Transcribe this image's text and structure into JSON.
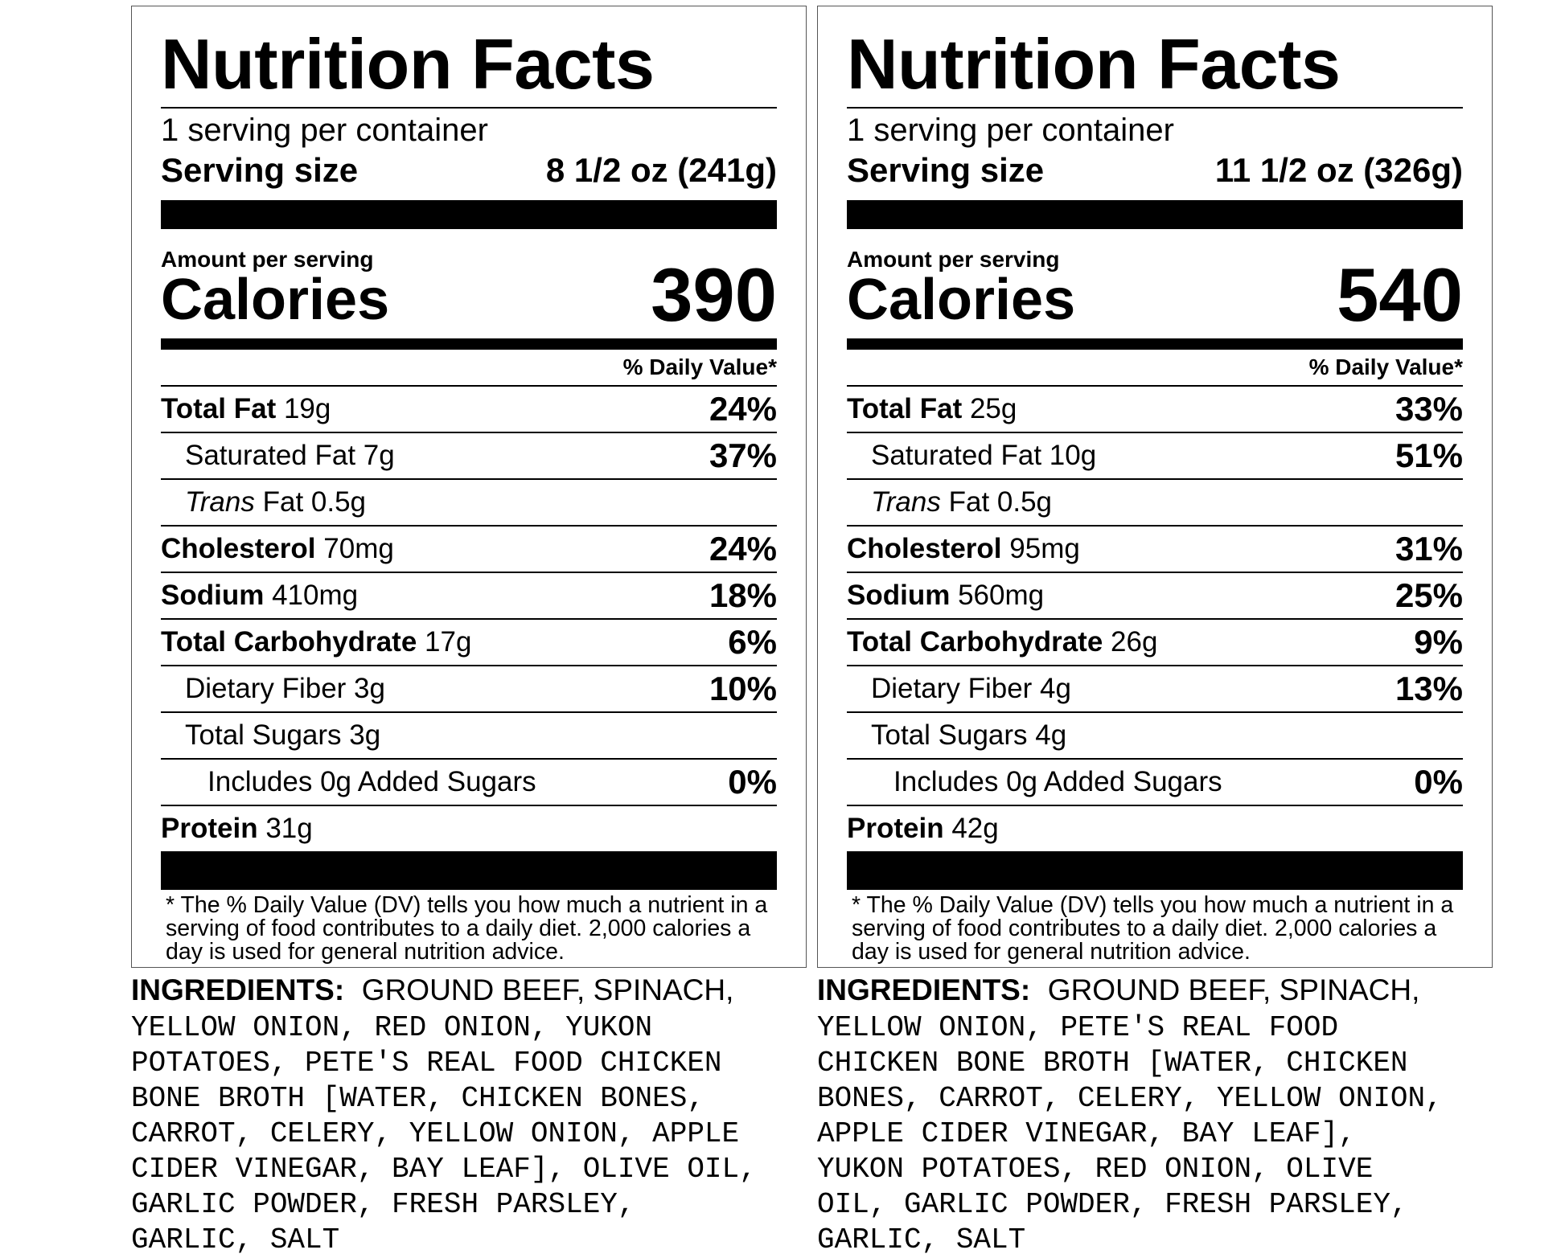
{
  "labels": [
    {
      "title": "Nutrition Facts",
      "servings_per_container": "1 serving per container",
      "serving_size_label": "Serving size",
      "serving_size_value": "8 1/2 oz (241g)",
      "amount_per_serving": "Amount per serving",
      "calories_label": "Calories",
      "calories_value": "390",
      "dv_header": "% Daily Value*",
      "nutrients": {
        "total_fat": {
          "label": "Total Fat",
          "amount": "19g",
          "dv": "24%"
        },
        "saturated_fat": {
          "label": "Saturated Fat 7g",
          "dv": "37%"
        },
        "trans_fat": {
          "label_italic": "Trans",
          "label_rest": "Fat 0.5g"
        },
        "cholesterol": {
          "label": "Cholesterol",
          "amount": "70mg",
          "dv": "24%"
        },
        "sodium": {
          "label": "Sodium",
          "amount": "410mg",
          "dv": "18%"
        },
        "total_carbohydrate": {
          "label": "Total Carbohydrate",
          "amount": "17g",
          "dv": "6%"
        },
        "dietary_fiber": {
          "label": "Dietary Fiber 3g",
          "dv": "10%"
        },
        "total_sugars": {
          "label": "Total Sugars 3g"
        },
        "added_sugars": {
          "label": "Includes 0g Added Sugars",
          "dv": "0%"
        },
        "protein": {
          "label": "Protein",
          "amount": "31g"
        }
      },
      "footnote": "* The % Daily Value (DV) tells you how much a nutrient in a serving of food contributes to a daily diet. 2,000 calories a day is used for general nutrition advice.",
      "ingredients_label": "INGREDIENTS:",
      "ingredients_first": "GROUND BEEF, SPINACH,",
      "ingredients_rest": "YELLOW ONION, RED ONION, YUKON\nPOTATOES, PETE'S REAL FOOD CHICKEN\nBONE BROTH [WATER, CHICKEN BONES,\nCARROT, CELERY, YELLOW ONION, APPLE\nCIDER VINEGAR, BAY LEAF], OLIVE OIL,\nGARLIC POWDER, FRESH PARSLEY,\nGARLIC, SALT"
    },
    {
      "title": "Nutrition Facts",
      "servings_per_container": "1 serving per container",
      "serving_size_label": "Serving size",
      "serving_size_value": "11 1/2 oz (326g)",
      "amount_per_serving": "Amount per serving",
      "calories_label": "Calories",
      "calories_value": "540",
      "dv_header": "% Daily Value*",
      "nutrients": {
        "total_fat": {
          "label": "Total Fat",
          "amount": "25g",
          "dv": "33%"
        },
        "saturated_fat": {
          "label": "Saturated Fat 10g",
          "dv": "51%"
        },
        "trans_fat": {
          "label_italic": "Trans",
          "label_rest": "Fat 0.5g"
        },
        "cholesterol": {
          "label": "Cholesterol",
          "amount": "95mg",
          "dv": "31%"
        },
        "sodium": {
          "label": "Sodium",
          "amount": "560mg",
          "dv": "25%"
        },
        "total_carbohydrate": {
          "label": "Total Carbohydrate",
          "amount": "26g",
          "dv": "9%"
        },
        "dietary_fiber": {
          "label": "Dietary Fiber 4g",
          "dv": "13%"
        },
        "total_sugars": {
          "label": "Total Sugars 4g"
        },
        "added_sugars": {
          "label": "Includes 0g Added Sugars",
          "dv": "0%"
        },
        "protein": {
          "label": "Protein",
          "amount": "42g"
        }
      },
      "footnote": "* The % Daily Value (DV) tells you how much a nutrient in a serving of food contributes to a daily diet. 2,000 calories a day is used for general nutrition advice.",
      "ingredients_label": "INGREDIENTS:",
      "ingredients_first": "GROUND BEEF, SPINACH,",
      "ingredients_rest": "YELLOW ONION, PETE'S REAL FOOD\nCHICKEN BONE BROTH [WATER, CHICKEN\nBONES, CARROT, CELERY, YELLOW ONION,\nAPPLE CIDER VINEGAR, BAY LEAF],\nYUKON POTATOES, RED ONION, OLIVE\nOIL, GARLIC POWDER, FRESH PARSLEY,\nGARLIC, SALT"
    }
  ]
}
